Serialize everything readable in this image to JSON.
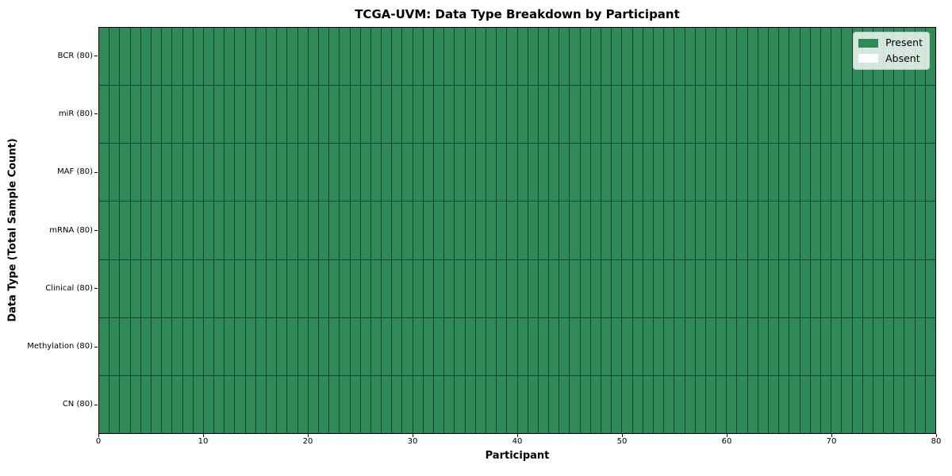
{
  "chart_data": {
    "type": "heatmap",
    "title": "TCGA-UVM: Data Type Breakdown by Participant",
    "xlabel": "Participant",
    "ylabel": "Data Type (Total Sample Count)",
    "x_range": [
      0,
      80
    ],
    "x_ticks": [
      0,
      10,
      20,
      30,
      40,
      50,
      60,
      70,
      80
    ],
    "n_participants": 80,
    "rows": [
      {
        "label": "BCR (80)",
        "name": "BCR",
        "total_samples": 80,
        "present_count": 80,
        "absent_count": 0
      },
      {
        "label": "miR (80)",
        "name": "miR",
        "total_samples": 80,
        "present_count": 80,
        "absent_count": 0
      },
      {
        "label": "MAF (80)",
        "name": "MAF",
        "total_samples": 80,
        "present_count": 80,
        "absent_count": 0
      },
      {
        "label": "mRNA (80)",
        "name": "mRNA",
        "total_samples": 80,
        "present_count": 80,
        "absent_count": 0
      },
      {
        "label": "Clinical (80)",
        "name": "Clinical",
        "total_samples": 80,
        "present_count": 80,
        "absent_count": 0
      },
      {
        "label": "Methylation (80)",
        "name": "Methylation",
        "total_samples": 80,
        "present_count": 80,
        "absent_count": 0
      },
      {
        "label": "CN (80)",
        "name": "CN",
        "total_samples": 80,
        "present_count": 80,
        "absent_count": 0
      }
    ],
    "legend": {
      "position": "upper right",
      "items": [
        {
          "label": "Present",
          "color": "#2e8b57"
        },
        {
          "label": "Absent",
          "color": "#ffffff"
        }
      ]
    },
    "colors": {
      "present": "#2e8b57",
      "absent": "#ffffff",
      "cell_border": "#17452b",
      "axis": "#000000",
      "text": "#000000",
      "background": "#ffffff"
    },
    "layout": {
      "grid_on": false,
      "legend_location": "upper right"
    }
  }
}
